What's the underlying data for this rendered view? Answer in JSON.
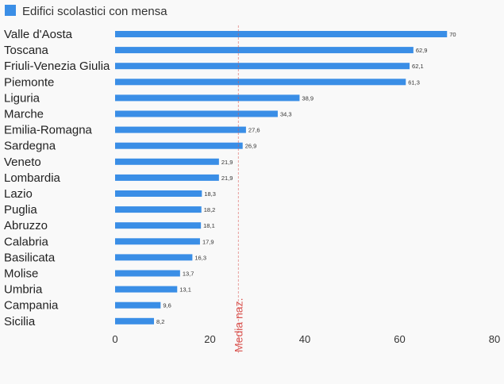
{
  "chart_data": {
    "type": "bar",
    "orientation": "horizontal",
    "legend": {
      "label": "Edifici scolastici con mensa",
      "color": "#3a8ee6",
      "position": "top-left"
    },
    "categories": [
      "Valle d'Aosta",
      "Toscana",
      "Friuli-Venezia Giulia",
      "Piemonte",
      "Liguria",
      "Marche",
      "Emilia-Romagna",
      "Sardegna",
      "Veneto",
      "Lombardia",
      "Lazio",
      "Puglia",
      "Abruzzo",
      "Calabria",
      "Basilicata",
      "Molise",
      "Umbria",
      "Campania",
      "Sicilia"
    ],
    "values": [
      70,
      62.9,
      62.1,
      61.3,
      38.9,
      34.3,
      27.6,
      26.9,
      21.9,
      21.9,
      18.3,
      18.2,
      18.1,
      17.9,
      16.3,
      13.7,
      13.1,
      9.6,
      8.2
    ],
    "value_labels": [
      "70",
      "62,9",
      "62,1",
      "61,3",
      "38,9",
      "34,3",
      "27,6",
      "26,9",
      "21,9",
      "21,9",
      "18,3",
      "18,2",
      "18,1",
      "17,9",
      "16,3",
      "13,7",
      "13,1",
      "9,6",
      "8,2"
    ],
    "xlim": [
      0,
      80
    ],
    "xticks": [
      "0",
      "20",
      "40",
      "60",
      "80"
    ],
    "reference_line": {
      "value": 26,
      "label": "Media naz.",
      "color": "#d9534f"
    },
    "grid": false,
    "title": "",
    "xlabel": "",
    "ylabel": ""
  }
}
